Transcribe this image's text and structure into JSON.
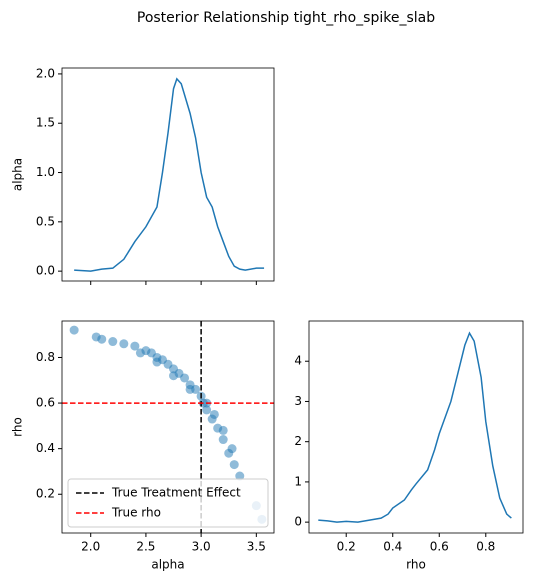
{
  "title": "Posterior Relationship tight_rho_spike_slab",
  "chart_data": [
    {
      "type": "line",
      "ylabel": "alpha",
      "color": "#1f77b4",
      "show_xtick_labels": false,
      "x": [
        1.85,
        2.0,
        2.1,
        2.2,
        2.3,
        2.4,
        2.5,
        2.6,
        2.65,
        2.7,
        2.75,
        2.78,
        2.82,
        2.9,
        2.95,
        3.0,
        3.05,
        3.1,
        3.15,
        3.2,
        3.25,
        3.3,
        3.35,
        3.4,
        3.5,
        3.57
      ],
      "values": [
        0.01,
        0.0,
        0.02,
        0.03,
        0.12,
        0.3,
        0.45,
        0.65,
        1.0,
        1.4,
        1.85,
        1.95,
        1.9,
        1.6,
        1.35,
        1.0,
        0.75,
        0.65,
        0.45,
        0.3,
        0.15,
        0.05,
        0.02,
        0.01,
        0.03,
        0.03
      ],
      "xlim": [
        1.74,
        3.66
      ],
      "xticks": [
        2.0,
        2.5,
        3.0,
        3.5
      ],
      "ylim": [
        -0.1,
        2.06
      ],
      "yticks": [
        {
          "value": 0,
          "label": "0.0"
        },
        0.5,
        {
          "value": 1,
          "label": "1.0"
        },
        1.5,
        {
          "value": 2,
          "label": "2.0"
        }
      ]
    },
    {
      "type": "scatter",
      "xlabel": "alpha",
      "ylabel": "rho",
      "color": "#1f77b4",
      "legend": "lower left",
      "x": [
        1.85,
        2.05,
        2.1,
        2.2,
        2.3,
        2.4,
        2.5,
        2.55,
        2.6,
        2.65,
        2.7,
        2.75,
        2.8,
        2.85,
        2.9,
        2.95,
        3.0,
        3.02,
        3.05,
        3.1,
        3.15,
        3.2,
        3.25,
        3.3,
        3.35,
        3.5,
        3.55,
        2.45,
        2.6,
        2.75,
        2.9,
        3.05,
        3.12,
        3.2,
        3.28
      ],
      "values": [
        0.92,
        0.89,
        0.88,
        0.87,
        0.86,
        0.85,
        0.83,
        0.82,
        0.8,
        0.79,
        0.77,
        0.75,
        0.73,
        0.71,
        0.68,
        0.66,
        0.63,
        0.6,
        0.57,
        0.53,
        0.49,
        0.44,
        0.38,
        0.33,
        0.28,
        0.15,
        0.09,
        0.82,
        0.78,
        0.72,
        0.66,
        0.6,
        0.55,
        0.48,
        0.4
      ],
      "xlim": [
        1.74,
        3.66
      ],
      "xticks": [
        {
          "value": 2,
          "label": "2.0"
        },
        2.5,
        {
          "value": 3,
          "label": "3.0"
        },
        3.5
      ],
      "ylim": [
        0.03,
        0.96
      ],
      "yticks": [
        0.2,
        0.4,
        0.6,
        0.8
      ],
      "vlines": [
        {
          "x": 3.0,
          "label": "True Treatment Effect",
          "color": "black"
        }
      ],
      "hlines": [
        {
          "y": 0.6,
          "label": "True rho",
          "color": "red"
        }
      ]
    },
    {
      "type": "line",
      "xlabel": "rho",
      "color": "#1f77b4",
      "x": [
        0.08,
        0.12,
        0.16,
        0.2,
        0.25,
        0.3,
        0.35,
        0.38,
        0.4,
        0.45,
        0.48,
        0.5,
        0.55,
        0.58,
        0.6,
        0.65,
        0.68,
        0.71,
        0.73,
        0.75,
        0.78,
        0.8,
        0.83,
        0.86,
        0.89,
        0.91
      ],
      "values": [
        0.05,
        0.03,
        0.0,
        0.02,
        0.0,
        0.05,
        0.1,
        0.2,
        0.35,
        0.55,
        0.8,
        0.95,
        1.3,
        1.8,
        2.2,
        3.0,
        3.7,
        4.4,
        4.7,
        4.5,
        3.6,
        2.5,
        1.4,
        0.6,
        0.2,
        0.1
      ],
      "xlim": [
        0.04,
        0.96
      ],
      "xticks": [
        0.2,
        0.4,
        0.6,
        0.8
      ],
      "ylim": [
        -0.27,
        5.0
      ],
      "yticks": [
        0,
        1,
        2,
        3,
        4
      ]
    }
  ]
}
